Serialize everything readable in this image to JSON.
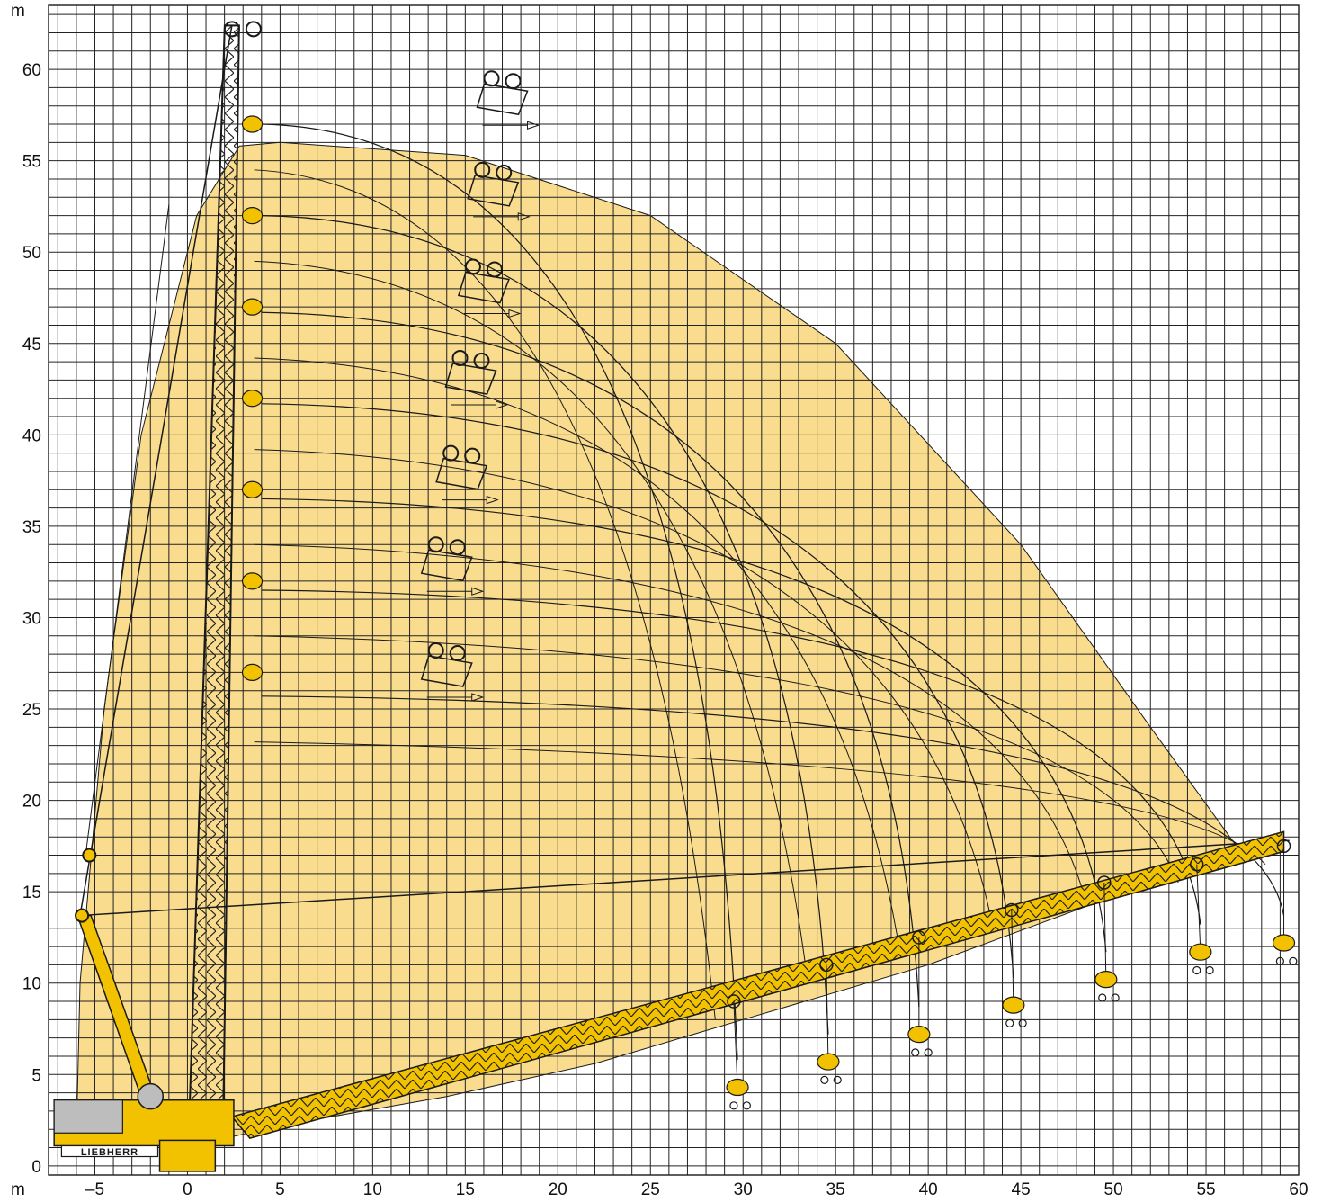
{
  "chart_data": {
    "type": "diagram",
    "title": "",
    "x_unit": "m",
    "y_unit": "m",
    "xlim": [
      -7.5,
      60
    ],
    "ylim": [
      -0.5,
      63.5
    ],
    "x_ticks": [
      -5,
      0,
      5,
      10,
      15,
      20,
      25,
      30,
      35,
      40,
      45,
      50,
      55,
      60
    ],
    "x_tick_labels": [
      "–5",
      "0",
      "5",
      "10",
      "15",
      "20",
      "25",
      "30",
      "35",
      "40",
      "45",
      "50",
      "55",
      "60"
    ],
    "y_ticks": [
      0,
      5,
      10,
      15,
      20,
      25,
      30,
      35,
      40,
      45,
      50,
      55,
      60
    ],
    "y_tick_labels": [
      "0",
      "5",
      "10",
      "15",
      "20",
      "25",
      "30",
      "35",
      "40",
      "45",
      "50",
      "55",
      "60"
    ],
    "grid": true,
    "minor_grid_step": 1,
    "brand": "LIEBHERR",
    "colors": {
      "envelope_fill": "#f9dc8e",
      "boom_yellow": "#f2c200",
      "line": "#1a1a1a",
      "grid": "#222222"
    },
    "working_envelope": [
      [
        -6,
        1.5
      ],
      [
        -5.8,
        10
      ],
      [
        -4.5,
        25
      ],
      [
        -2.5,
        40
      ],
      [
        0.5,
        52
      ],
      [
        2.8,
        55.8
      ],
      [
        5,
        56
      ],
      [
        15,
        55.3
      ],
      [
        25,
        52
      ],
      [
        35,
        45
      ],
      [
        45,
        34
      ],
      [
        52,
        24
      ],
      [
        57,
        17
      ],
      [
        59,
        17.8
      ],
      [
        52,
        15.5
      ],
      [
        40,
        11
      ],
      [
        30,
        8
      ],
      [
        22,
        5.6
      ],
      [
        14,
        3.8
      ],
      [
        5,
        2.2
      ],
      [
        2,
        1.5
      ]
    ],
    "main_boom": {
      "foot": [
        1,
        2
      ],
      "head": [
        2.4,
        62.4
      ]
    },
    "counter_jib": {
      "foot": [
        -1.5,
        2
      ],
      "head": [
        -5.7,
        13.7
      ]
    },
    "luffing_jib_positions": [
      {
        "jib_head": [
          59.2,
          17.5
        ],
        "hook": [
          59.2,
          12.2
        ]
      },
      {
        "jib_head": [
          54.5,
          16.5
        ],
        "hook": [
          54.7,
          11.7
        ]
      },
      {
        "jib_head": [
          49.5,
          15.5
        ],
        "hook": [
          49.6,
          10.2
        ]
      },
      {
        "jib_head": [
          44.5,
          14
        ],
        "hook": [
          44.6,
          8.8
        ]
      },
      {
        "jib_head": [
          39.5,
          12.5
        ],
        "hook": [
          39.5,
          7.2
        ]
      },
      {
        "jib_head": [
          34.5,
          11
        ],
        "hook": [
          34.6,
          5.7
        ]
      },
      {
        "jib_head": [
          29.5,
          9
        ],
        "hook": [
          29.7,
          4.3
        ]
      }
    ],
    "steep_jib_positions": [
      {
        "jib_head": [
          17,
          59.5
        ]
      },
      {
        "jib_head": [
          16.5,
          54.5
        ]
      },
      {
        "jib_head": [
          16,
          49.2
        ]
      },
      {
        "jib_head": [
          15.3,
          44.2
        ]
      },
      {
        "jib_head": [
          14.8,
          39
        ]
      },
      {
        "jib_head": [
          14,
          34
        ]
      },
      {
        "jib_head": [
          14,
          28.2
        ]
      }
    ]
  }
}
